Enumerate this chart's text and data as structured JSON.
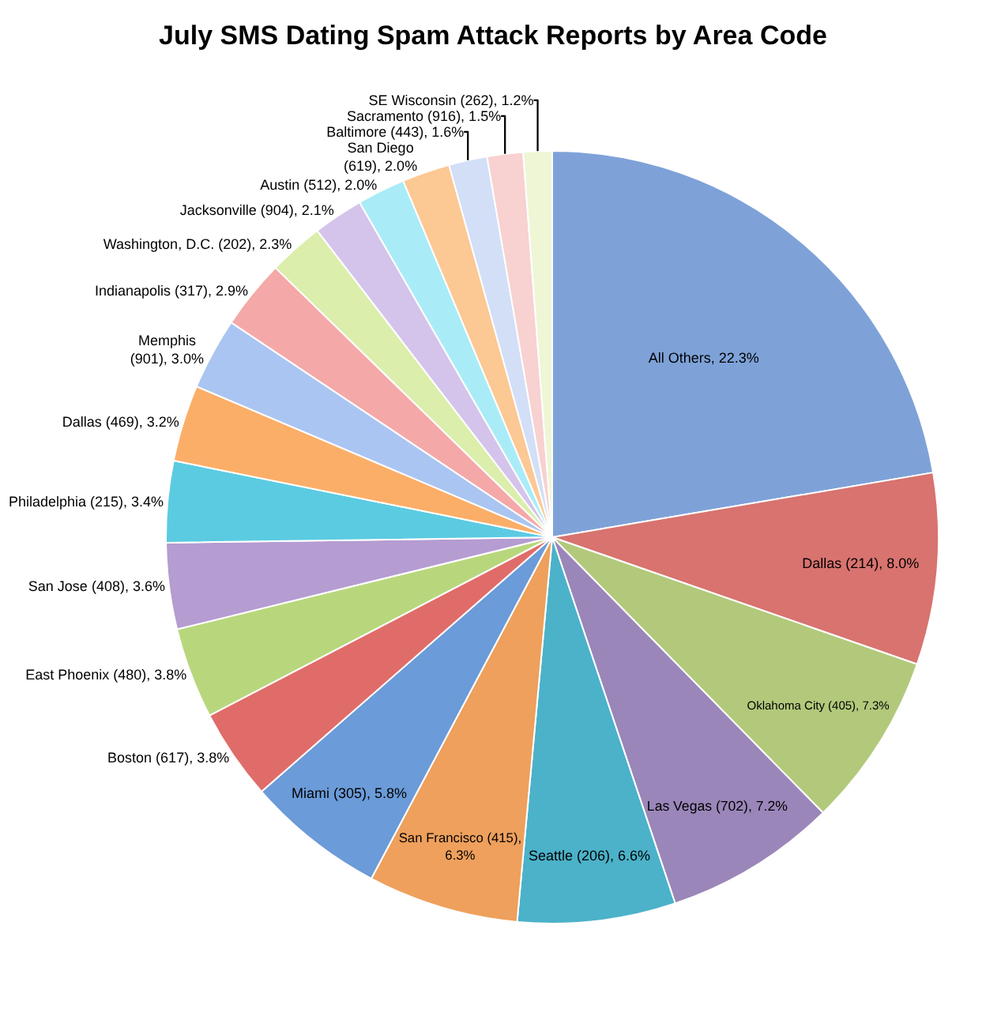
{
  "chart_data": {
    "type": "pie",
    "title": "July SMS Dating Spam Attack Reports by Area Code",
    "categories": [
      "All Others, 22.3%",
      "Dallas (214), 8.0%",
      "Oklahoma City (405), 7.3%",
      "Las Vegas (702), 7.2%",
      "Seattle (206), 6.6%",
      "San Francisco (415),\n6.3%",
      "Miami (305), 5.8%",
      "Boston (617), 3.8%",
      "East Phoenix (480), 3.8%",
      "San Jose (408), 3.6%",
      "Philadelphia (215), 3.4%",
      "Dallas (469), 3.2%",
      "Memphis\n(901), 3.0%",
      "Indianapolis (317), 2.9%",
      "Washington, D.C. (202), 2.3%",
      "Jacksonville (904), 2.1%",
      "Austin (512), 2.0%",
      "San Diego\n(619), 2.0%",
      "Baltimore (443), 1.6%",
      "Sacramento (916), 1.5%",
      "SE Wisconsin (262), 1.2%"
    ],
    "values": [
      22.3,
      8.0,
      7.3,
      7.2,
      6.6,
      6.3,
      5.8,
      3.8,
      3.8,
      3.6,
      3.4,
      3.2,
      3.0,
      2.9,
      2.3,
      2.1,
      2.0,
      2.0,
      1.6,
      1.5,
      1.2
    ],
    "colors": [
      "#7ea2d8",
      "#d8736f",
      "#b2c97b",
      "#9a86b9",
      "#4bb2c9",
      "#eea05c",
      "#6b9bd8",
      "#e06c69",
      "#b8d77c",
      "#b59cd1",
      "#5bcbe1",
      "#fbae68",
      "#aac5f1",
      "#f5a8a8",
      "#dbeeab",
      "#d4c4eb",
      "#a9ecf7",
      "#fcc894",
      "#d2dff7",
      "#f8d1d1",
      "#eef6d5"
    ],
    "legend": false
  }
}
